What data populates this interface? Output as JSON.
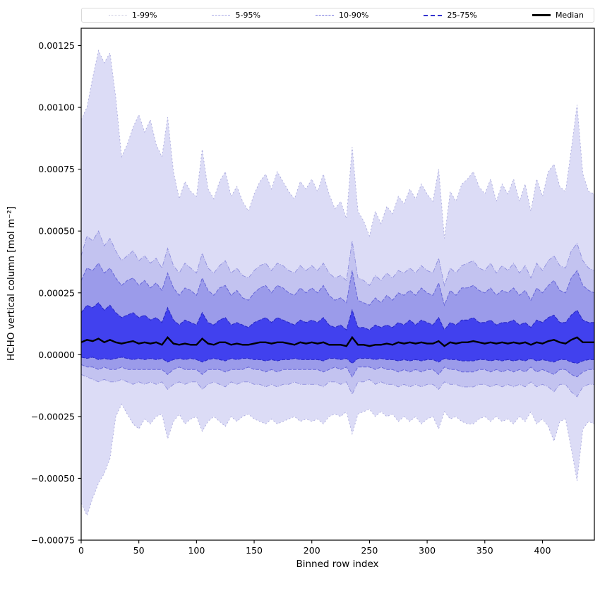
{
  "legend": {
    "items": [
      {
        "label": "1-99%",
        "color": "#c7c7de",
        "dash": "dotted",
        "width": 1
      },
      {
        "label": "5-95%",
        "color": "#a9a9e6",
        "dash": "dashdot",
        "width": 1
      },
      {
        "label": "10-90%",
        "color": "#7272dc",
        "dash": "dashed",
        "width": 1
      },
      {
        "label": "25-75%",
        "color": "#3232cf",
        "dash": "dashed",
        "width": 2
      },
      {
        "label": "Median",
        "color": "#000000",
        "dash": "solid",
        "width": 3
      }
    ]
  },
  "chart_data": {
    "type": "area",
    "title": "",
    "xlabel": "Binned row index",
    "ylabel": "HCHO vertical column [mol m⁻²]",
    "xlim": [
      0,
      445
    ],
    "ylim": [
      -0.00075,
      0.00132
    ],
    "grid": false,
    "legend_position": "top",
    "xticks": [
      0,
      50,
      100,
      150,
      200,
      250,
      300,
      350,
      400
    ],
    "yticks": [
      -0.00075,
      -0.0005,
      -0.00025,
      0,
      0.00025,
      0.0005,
      0.00075,
      0.001,
      0.00125
    ],
    "ytick_labels": [
      "−0.00075",
      "−0.00050",
      "−0.00025",
      "0.00000",
      "0.00025",
      "0.00050",
      "0.00075",
      "0.00100",
      "0.00125"
    ],
    "x_start": 0,
    "x_step": 5,
    "value_scale": 1e-05,
    "value_unit": "mol m⁻² (values stored × 1e-5)",
    "median_style": {
      "label": "Median",
      "color": "#000000",
      "width": 2.4
    },
    "bands": [
      {
        "label": "1-99%",
        "lower": "p01",
        "upper": "p99",
        "fill": "#dcdcf6",
        "edge": "#aaaadd",
        "dash": "2 3",
        "edge_width": 0.9
      },
      {
        "label": "5-95%",
        "lower": "p05",
        "upper": "p95",
        "fill": "#c3c3f0",
        "edge": "#8f8fdd",
        "dash": "6 2 1 2",
        "edge_width": 0.9
      },
      {
        "label": "10-90%",
        "lower": "p10",
        "upper": "p90",
        "fill": "#9b9bea",
        "edge": "#6666d8",
        "dash": "5 2",
        "edge_width": 1
      },
      {
        "label": "25-75%",
        "lower": "p25",
        "upper": "p75",
        "fill": "#4141ee",
        "edge": "#2a2ac8",
        "dash": "5 2",
        "edge_width": 1.1
      }
    ],
    "series": {
      "p99": [
        95,
        100,
        112,
        123,
        118,
        122,
        104,
        80,
        85,
        92,
        97,
        90,
        95,
        85,
        80,
        96,
        74,
        63,
        70,
        66,
        64,
        83,
        67,
        63,
        70,
        74,
        64,
        68,
        62,
        58,
        65,
        70,
        73,
        67,
        74,
        70,
        66,
        63,
        70,
        67,
        71,
        66,
        73,
        65,
        59,
        62,
        55,
        84,
        58,
        54,
        48,
        58,
        53,
        60,
        57,
        64,
        61,
        67,
        63,
        69,
        65,
        62,
        75,
        47,
        66,
        62,
        69,
        71,
        74,
        68,
        65,
        71,
        62,
        69,
        65,
        71,
        62,
        69,
        58,
        71,
        64,
        74,
        77,
        68,
        66,
        83,
        101,
        73,
        66,
        65
      ],
      "p95": [
        40,
        48,
        46,
        50,
        44,
        47,
        42,
        38,
        40,
        42,
        38,
        40,
        37,
        39,
        35,
        43,
        36,
        33,
        37,
        35,
        33,
        41,
        35,
        33,
        36,
        38,
        33,
        35,
        32,
        31,
        34,
        36,
        37,
        34,
        37,
        36,
        34,
        33,
        36,
        34,
        36,
        34,
        37,
        33,
        31,
        32,
        30,
        46,
        31,
        30,
        28,
        32,
        30,
        33,
        31,
        34,
        33,
        35,
        33,
        36,
        34,
        33,
        39,
        28,
        35,
        33,
        36,
        37,
        38,
        35,
        34,
        37,
        33,
        36,
        34,
        37,
        33,
        36,
        31,
        37,
        34,
        38,
        40,
        36,
        35,
        42,
        45,
        38,
        35,
        34
      ],
      "p90": [
        30,
        35,
        34,
        37,
        33,
        35,
        31,
        28,
        30,
        31,
        28,
        30,
        27,
        29,
        26,
        33,
        27,
        24,
        27,
        26,
        24,
        31,
        26,
        24,
        27,
        28,
        24,
        26,
        23,
        22,
        25,
        27,
        28,
        25,
        28,
        27,
        25,
        24,
        27,
        25,
        27,
        25,
        28,
        24,
        22,
        23,
        21,
        34,
        22,
        21,
        20,
        23,
        21,
        24,
        22,
        25,
        24,
        26,
        24,
        27,
        25,
        24,
        29,
        20,
        26,
        24,
        27,
        27,
        28,
        26,
        25,
        27,
        24,
        26,
        25,
        27,
        24,
        26,
        22,
        27,
        25,
        28,
        30,
        26,
        25,
        31,
        34,
        28,
        26,
        25
      ],
      "p75": [
        17,
        20,
        19,
        21,
        18,
        20,
        17,
        15,
        16,
        17,
        15,
        16,
        14,
        15,
        13,
        19,
        14,
        12,
        14,
        13,
        12,
        17,
        13,
        12,
        14,
        15,
        12,
        13,
        12,
        11,
        13,
        14,
        15,
        13,
        15,
        14,
        13,
        12,
        14,
        13,
        14,
        13,
        15,
        12,
        11,
        12,
        10,
        18,
        11,
        11,
        10,
        12,
        11,
        12,
        11,
        13,
        12,
        14,
        12,
        14,
        13,
        12,
        15,
        10,
        13,
        12,
        14,
        14,
        15,
        13,
        13,
        14,
        12,
        13,
        13,
        14,
        12,
        13,
        11,
        14,
        13,
        15,
        16,
        13,
        13,
        16,
        18,
        14,
        13,
        13
      ],
      "median": [
        5,
        6,
        5.5,
        6.5,
        5,
        6,
        5,
        4.5,
        5,
        5.5,
        4.5,
        5,
        4.5,
        5,
        4,
        7,
        4.5,
        4,
        4.5,
        4,
        4,
        6.5,
        4.5,
        4,
        5,
        5,
        4,
        4.5,
        4,
        4,
        4.5,
        5,
        5,
        4.5,
        5,
        5,
        4.5,
        4,
        5,
        4.5,
        5,
        4.5,
        5,
        4,
        4,
        4,
        3.5,
        7,
        4,
        4,
        3.5,
        4,
        4,
        4.5,
        4,
        5,
        4.5,
        5,
        4.5,
        5,
        4.5,
        4.5,
        5.5,
        3.5,
        5,
        4.5,
        5,
        5,
        5.5,
        5,
        4.5,
        5,
        4.5,
        5,
        4.5,
        5,
        4.5,
        5,
        4,
        5,
        4.5,
        5.5,
        6,
        5,
        4.5,
        6,
        7,
        5,
        5,
        5
      ],
      "p25": [
        -1,
        -1.5,
        -1,
        -2,
        -1.5,
        -2,
        -1.5,
        -1,
        -1.5,
        -2,
        -1.5,
        -2,
        -1.5,
        -2,
        -1.5,
        -3,
        -2,
        -1.5,
        -2,
        -1.5,
        -2,
        -3,
        -2,
        -1.5,
        -2,
        -2.5,
        -1.5,
        -2,
        -1.5,
        -1.5,
        -2,
        -2,
        -2.5,
        -2,
        -2.5,
        -2,
        -2,
        -1.5,
        -2,
        -2,
        -2,
        -2,
        -2.5,
        -1.5,
        -1.5,
        -2,
        -1.5,
        -3.5,
        -1.5,
        -1.5,
        -1.5,
        -2,
        -1.5,
        -2,
        -2,
        -2.5,
        -2,
        -2.5,
        -2,
        -2.5,
        -2,
        -2,
        -3,
        -1.5,
        -2,
        -2,
        -2.5,
        -2.5,
        -2.5,
        -2,
        -2,
        -2.5,
        -2,
        -2.5,
        -2,
        -2.5,
        -2,
        -2.5,
        -1.5,
        -2.5,
        -2,
        -2.5,
        -3,
        -2,
        -2,
        -3,
        -3.5,
        -2.5,
        -2,
        -2
      ],
      "p10": [
        -4,
        -5,
        -5,
        -6,
        -5,
        -6,
        -6,
        -5,
        -6,
        -6,
        -6,
        -6,
        -6,
        -6,
        -6,
        -8,
        -6,
        -5,
        -6,
        -6,
        -6,
        -8,
        -6,
        -6,
        -6,
        -7,
        -6,
        -6,
        -6,
        -5,
        -6,
        -6,
        -7,
        -6,
        -7,
        -6,
        -6,
        -6,
        -6,
        -6,
        -6,
        -6,
        -7,
        -6,
        -5,
        -6,
        -5,
        -9,
        -5,
        -5,
        -5,
        -6,
        -5,
        -6,
        -6,
        -7,
        -6,
        -7,
        -6,
        -7,
        -6,
        -6,
        -8,
        -5,
        -6,
        -6,
        -7,
        -7,
        -7,
        -6,
        -6,
        -7,
        -6,
        -7,
        -6,
        -7,
        -6,
        -7,
        -5,
        -7,
        -6,
        -7,
        -8,
        -6,
        -6,
        -8,
        -9,
        -7,
        -6,
        -6
      ],
      "p05": [
        -8,
        -9,
        -10,
        -11,
        -10,
        -11,
        -11,
        -10,
        -11,
        -12,
        -11,
        -12,
        -11,
        -12,
        -11,
        -14,
        -12,
        -11,
        -12,
        -11,
        -11,
        -14,
        -12,
        -11,
        -12,
        -13,
        -11,
        -12,
        -11,
        -11,
        -12,
        -12,
        -13,
        -12,
        -13,
        -12,
        -12,
        -11,
        -12,
        -12,
        -12,
        -12,
        -13,
        -11,
        -11,
        -12,
        -11,
        -16,
        -11,
        -11,
        -10,
        -12,
        -11,
        -12,
        -12,
        -13,
        -12,
        -13,
        -12,
        -13,
        -12,
        -12,
        -14,
        -11,
        -12,
        -12,
        -13,
        -13,
        -13,
        -12,
        -12,
        -13,
        -12,
        -13,
        -12,
        -13,
        -12,
        -13,
        -11,
        -13,
        -12,
        -13,
        -15,
        -12,
        -12,
        -15,
        -17,
        -13,
        -12,
        -12
      ],
      "p01": [
        -60,
        -65,
        -58,
        -52,
        -48,
        -42,
        -25,
        -20,
        -24,
        -28,
        -30,
        -26,
        -28,
        -25,
        -24,
        -34,
        -27,
        -24,
        -28,
        -26,
        -25,
        -31,
        -27,
        -25,
        -27,
        -29,
        -25,
        -27,
        -25,
        -24,
        -26,
        -27,
        -28,
        -26,
        -28,
        -27,
        -26,
        -25,
        -27,
        -26,
        -27,
        -26,
        -28,
        -25,
        -24,
        -25,
        -23,
        -32,
        -24,
        -23,
        -22,
        -25,
        -23,
        -25,
        -24,
        -27,
        -25,
        -27,
        -25,
        -28,
        -26,
        -25,
        -30,
        -23,
        -26,
        -25,
        -27,
        -28,
        -28,
        -26,
        -25,
        -27,
        -25,
        -27,
        -26,
        -28,
        -25,
        -27,
        -23,
        -28,
        -26,
        -29,
        -35,
        -27,
        -26,
        -38,
        -51,
        -30,
        -27,
        -28
      ]
    }
  }
}
